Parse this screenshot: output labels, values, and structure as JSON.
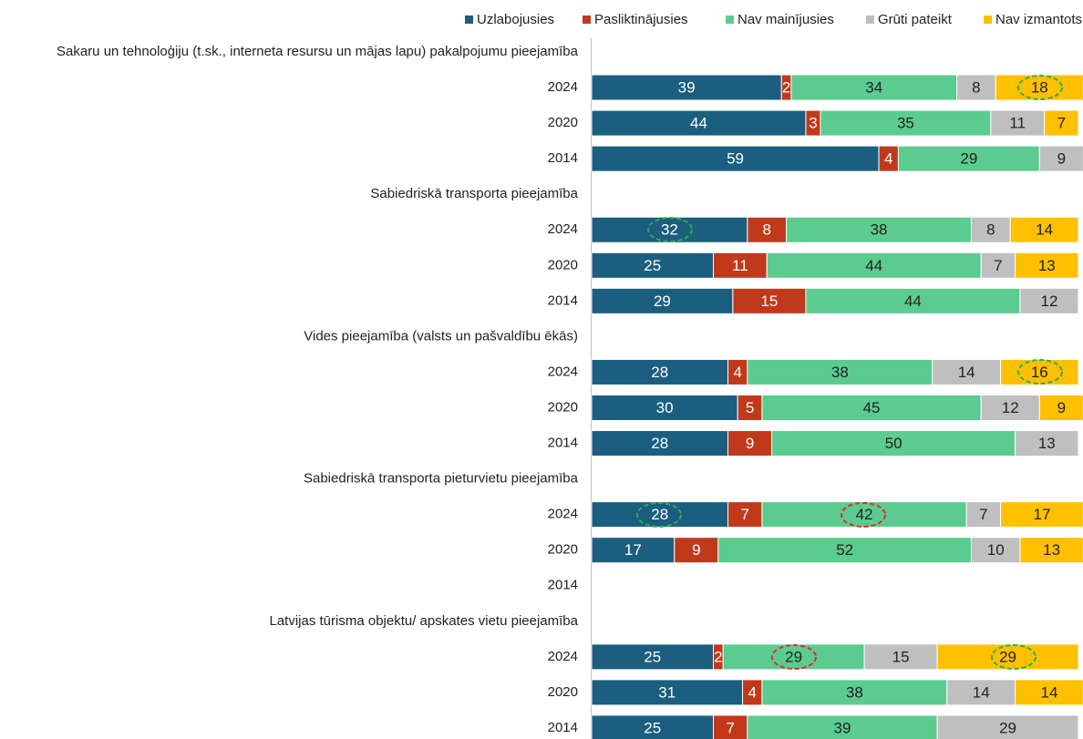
{
  "chart_data": {
    "type": "bar",
    "orientation": "horizontal",
    "stacked": true,
    "categories": [
      "Sakaru un tehnoloģiju (t.sk., interneta resursu un mājas lapu) pakalpojumu pieejamība",
      "2024",
      "2020",
      "2014",
      "Sabiedriskā transporta pieejamība",
      "2024",
      "2020",
      "2014",
      "Vides pieejamība (valsts un pašvaldību ēkās)",
      "2024",
      "2020",
      "2014",
      "Sabiedriskā transporta pieturvietu pieejamība",
      "2024",
      "2020",
      "2014",
      "Latvijas tūrisma objektu/ apskates vietu pieejamība",
      "2024",
      "2020",
      "2014"
    ],
    "xlim": [
      0,
      100
    ],
    "legend": "top",
    "series": [
      {
        "name": "Uzlabojusies",
        "color": "#1b5e7f",
        "values": [
          null,
          39,
          44,
          59,
          null,
          32,
          25,
          29,
          null,
          28,
          30,
          28,
          null,
          28,
          17,
          null,
          null,
          25,
          31,
          25
        ]
      },
      {
        "name": "Pasliktinājusies",
        "color": "#c0391b",
        "values": [
          null,
          2,
          3,
          4,
          null,
          8,
          11,
          15,
          null,
          4,
          5,
          9,
          null,
          7,
          9,
          null,
          null,
          2,
          4,
          7
        ]
      },
      {
        "name": "Nav mainījusies",
        "color": "#5ccb8f",
        "values": [
          null,
          34,
          35,
          29,
          null,
          38,
          44,
          44,
          null,
          38,
          45,
          50,
          null,
          42,
          52,
          null,
          null,
          29,
          38,
          39
        ]
      },
      {
        "name": "Grūti pateikt",
        "color": "#bfbfbf",
        "values": [
          null,
          8,
          11,
          9,
          null,
          8,
          7,
          12,
          null,
          14,
          12,
          13,
          null,
          7,
          10,
          null,
          null,
          15,
          14,
          29
        ]
      },
      {
        "name": "Nav izmantots",
        "color": "#ffc000",
        "values": [
          null,
          18,
          7,
          null,
          null,
          14,
          13,
          null,
          null,
          16,
          9,
          null,
          null,
          17,
          13,
          null,
          null,
          29,
          14,
          null
        ]
      }
    ]
  }
}
